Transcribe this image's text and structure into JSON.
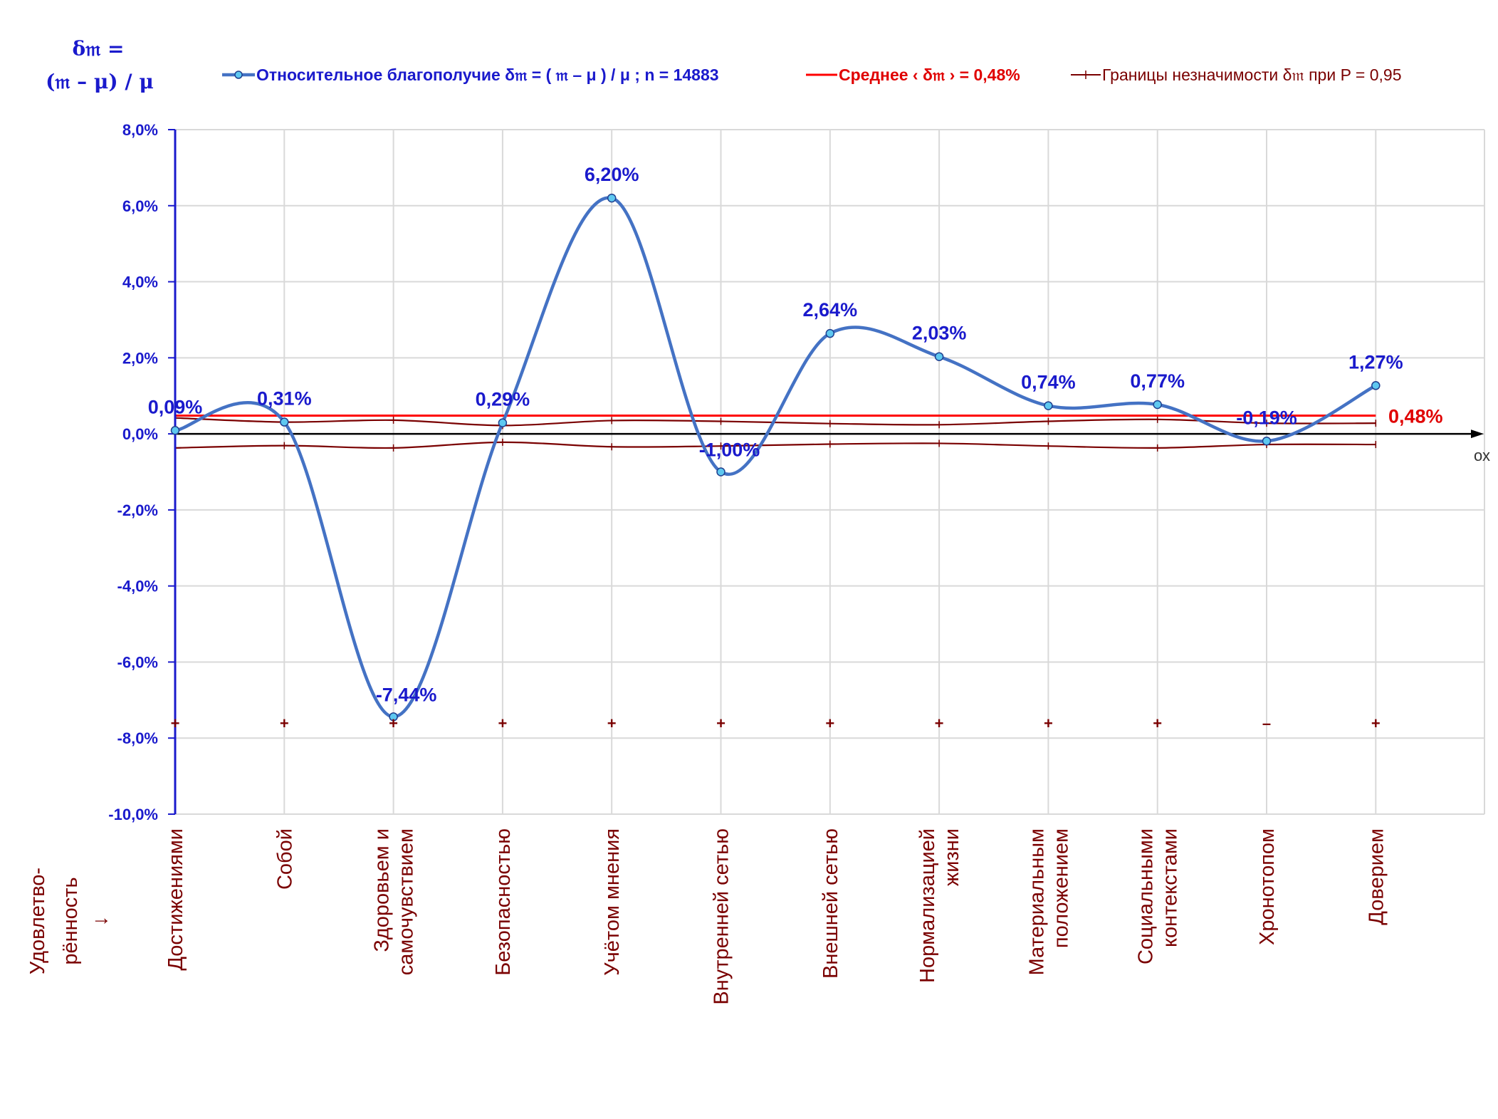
{
  "chart_data": {
    "type": "line",
    "y_title": [
      "δ𝔪 =",
      "(𝔪 – μ) / μ"
    ],
    "categories": [
      "Достижениями",
      "Собой",
      "Здоровьем и самочувствием",
      "Безопасностью",
      "Учётом мнения",
      "Внутренней сетью",
      "Внешней сетью",
      "Нормализацией жизни",
      "Материальным положением",
      "Социальными контекстами",
      "Хронотопом",
      "Доверием"
    ],
    "category_lines": [
      [
        "Достижениями"
      ],
      [
        "Собой"
      ],
      [
        "Здоровьем и",
        "самочувствием"
      ],
      [
        "Безопасностью"
      ],
      [
        "Учётом мнения"
      ],
      [
        "Внутренней сетью"
      ],
      [
        "Внешней сетью"
      ],
      [
        "Нормализацией",
        "жизни"
      ],
      [
        "Материальным",
        "положением"
      ],
      [
        "Социальными",
        "контекстами"
      ],
      [
        "Хронотопом"
      ],
      [
        "Доверием"
      ]
    ],
    "category_axis_title": [
      "Удовлетво-",
      "рённость",
      "↓"
    ],
    "y_ticks": [
      "8,0%",
      "6,0%",
      "4,0%",
      "2,0%",
      "0,0%",
      "-2,0%",
      "-4,0%",
      "-6,0%",
      "-8,0%",
      "-10,0%"
    ],
    "ylim": [
      -10,
      8
    ],
    "x_axis_label": "ох",
    "series": [
      {
        "name": "Относительное благополучие δ𝔪 = ( 𝔪 – μ ) / μ ; n = 14883",
        "color": "#4472c4",
        "values": [
          0.09,
          0.31,
          -7.44,
          0.29,
          6.2,
          -1.0,
          2.64,
          2.03,
          0.74,
          0.77,
          -0.19,
          1.27
        ],
        "labels": [
          "0,09%",
          "0,31%",
          "-7,44%",
          "0,29%",
          "6,20%",
          "-1,00%",
          "2,64%",
          "2,03%",
          "0,74%",
          "0,77%",
          "-0,19%",
          "1,27%"
        ]
      },
      {
        "name": "Среднее ‹ δ𝔪 › = 0,48%",
        "color": "#ff0000",
        "value": 0.48,
        "label": "0,48%"
      },
      {
        "name": "Границы незначимости δ𝔪 при P = 0,95",
        "color": "#7a0000",
        "upper": [
          0.42,
          0.31,
          0.36,
          0.22,
          0.35,
          0.33,
          0.27,
          0.24,
          0.33,
          0.38,
          0.28,
          0.28
        ],
        "lower": [
          -0.37,
          -0.31,
          -0.37,
          -0.22,
          -0.34,
          -0.32,
          -0.27,
          -0.25,
          -0.32,
          -0.37,
          -0.28,
          -0.28
        ]
      }
    ],
    "significance_marks": [
      "+",
      "+",
      "+",
      "+",
      "+",
      "+",
      "+",
      "+",
      "+",
      "+",
      "–",
      "+"
    ],
    "significance_level": -7.6,
    "grid": true,
    "legend_position": "top"
  }
}
